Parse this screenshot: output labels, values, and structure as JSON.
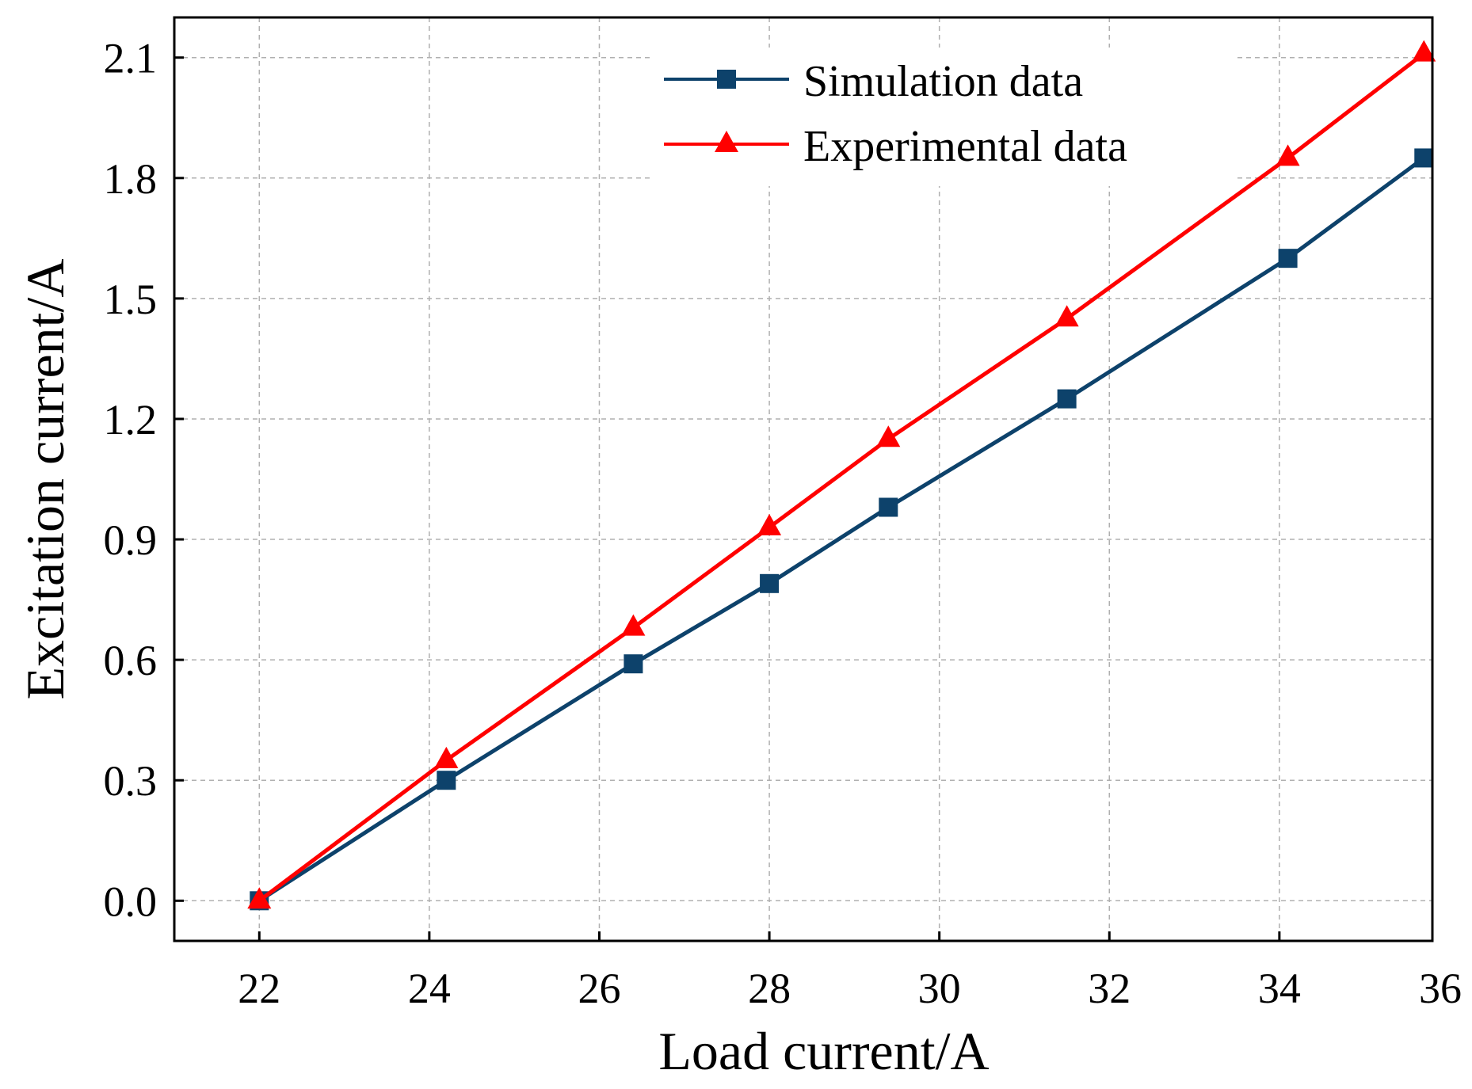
{
  "chart_data": {
    "type": "line",
    "title": "",
    "xlabel": "Load current/A",
    "ylabel": "Excitation current/A",
    "xlim": [
      21,
      35.8
    ],
    "ylim": [
      -0.1,
      2.2
    ],
    "xticks": [
      22,
      24,
      26,
      28,
      30,
      32,
      34,
      36
    ],
    "xtick_labels": [
      "22",
      "24",
      "26",
      "28",
      "30",
      "32",
      "34",
      "36"
    ],
    "yticks": [
      0.0,
      0.3,
      0.6,
      0.9,
      1.2,
      1.5,
      1.8,
      2.1
    ],
    "ytick_labels": [
      "0.0",
      "0.3",
      "0.6",
      "0.9",
      "1.2",
      "1.5",
      "1.8",
      "2.1"
    ],
    "grid": true,
    "legend_position": "top-right",
    "series": [
      {
        "name": "Simulation data",
        "color": "#0d426b",
        "marker": "square",
        "x": [
          22.0,
          24.2,
          26.4,
          28.0,
          29.4,
          31.5,
          34.1,
          35.7
        ],
        "y": [
          0.0,
          0.3,
          0.59,
          0.79,
          0.98,
          1.25,
          1.6,
          1.85
        ]
      },
      {
        "name": "Experimental data",
        "color": "#ff0000",
        "marker": "triangle",
        "x": [
          22.0,
          24.2,
          26.4,
          28.0,
          29.4,
          31.5,
          34.1,
          35.7
        ],
        "y": [
          0.0,
          0.35,
          0.68,
          0.93,
          1.15,
          1.45,
          1.85,
          2.11
        ]
      }
    ]
  }
}
